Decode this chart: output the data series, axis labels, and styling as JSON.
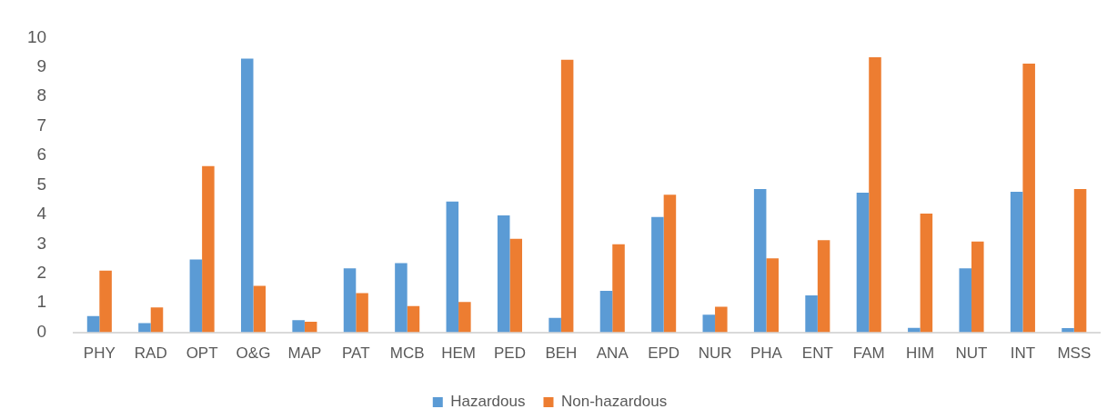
{
  "chart_data": {
    "type": "bar",
    "categories": [
      "PHY",
      "RAD",
      "OPT",
      "O&G",
      "MAP",
      "PAT",
      "MCB",
      "HEM",
      "PED",
      "BEH",
      "ANA",
      "EPD",
      "NUR",
      "PHA",
      "ENT",
      "FAM",
      "HIM",
      "NUT",
      "INT",
      "MSS"
    ],
    "series": [
      {
        "name": "Hazardous",
        "color": "#5b9bd5",
        "values": [
          0.55,
          0.31,
          2.47,
          9.29,
          0.41,
          2.17,
          2.35,
          4.44,
          3.97,
          0.49,
          1.41,
          3.91,
          0.6,
          4.86,
          1.25,
          4.74,
          0.15,
          2.17,
          4.77,
          0.14
        ]
      },
      {
        "name": "Non-hazardous",
        "color": "#ed7d31",
        "values": [
          2.09,
          0.84,
          5.64,
          1.58,
          0.36,
          1.33,
          0.89,
          1.03,
          3.17,
          9.25,
          2.99,
          4.67,
          0.87,
          2.51,
          3.13,
          9.33,
          4.03,
          3.08,
          9.12,
          4.86
        ]
      }
    ],
    "ylim": [
      0,
      10
    ],
    "yticks": [
      0,
      1,
      2,
      3,
      4,
      5,
      6,
      7,
      8,
      9,
      10
    ],
    "grid": false,
    "legend": "bottom"
  }
}
